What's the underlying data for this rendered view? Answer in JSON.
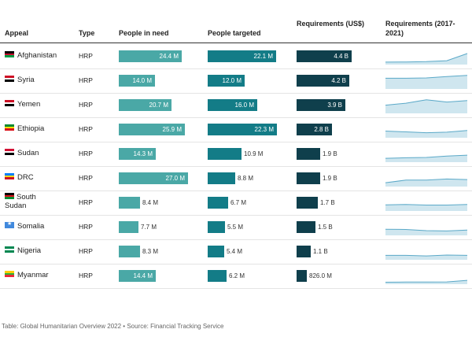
{
  "headers": {
    "appeal": "Appeal",
    "type": "Type",
    "in_need": "People in need",
    "targeted": "People targeted",
    "requirements": "Requirements (US$)",
    "trend": "Requirements (2017-2021)"
  },
  "source": "Table: Global Humanitarian Overview 2022 • Source: Financial Tracking Service",
  "colors": {
    "in_need": "#4aa8a6",
    "targeted": "#137c87",
    "requirements": "#0f3f4c",
    "spark_fill": "#cfe6ef",
    "spark_line": "#5ba9c8"
  },
  "chart_data": {
    "type": "table",
    "scales": {
      "in_need_max": 27.0,
      "targeted_max": 22.3,
      "requirements_max": 4.4
    },
    "rows": [
      {
        "name": "Afghanistan",
        "flag": "afghanistan-flag",
        "type": "HRP",
        "in_need": 24.4,
        "in_need_label": "24.4 M",
        "targeted": 22.1,
        "targeted_label": "22.1 M",
        "requirements": 4.4,
        "requirements_label": "4.4 B",
        "trend": [
          0.3,
          0.35,
          0.5,
          0.8,
          3.3
        ]
      },
      {
        "name": "Syria",
        "flag": "syria-flag",
        "type": "HRP",
        "in_need": 14.0,
        "in_need_label": "14.0 M",
        "targeted": 12.0,
        "targeted_label": "12.0 M",
        "requirements": 4.2,
        "requirements_label": "4.2 B",
        "trend": [
          3.2,
          3.2,
          3.3,
          3.8,
          4.2
        ]
      },
      {
        "name": "Yemen",
        "flag": "yemen-flag",
        "type": "HRP",
        "in_need": 20.7,
        "in_need_label": "20.7 M",
        "targeted": 16.0,
        "targeted_label": "16.0 M",
        "requirements": 3.9,
        "requirements_label": "3.9 B",
        "trend": [
          2.3,
          3.0,
          4.2,
          3.4,
          3.9
        ]
      },
      {
        "name": "Ethiopia",
        "flag": "ethiopia-flag",
        "type": "HRP",
        "in_need": 25.9,
        "in_need_label": "25.9 M",
        "targeted": 22.3,
        "targeted_label": "22.3 M",
        "requirements": 2.8,
        "requirements_label": "2.8 B",
        "trend": [
          1.8,
          1.5,
          1.2,
          1.4,
          2.0
        ]
      },
      {
        "name": "Sudan",
        "flag": "sudan-flag",
        "type": "HRP",
        "in_need": 14.3,
        "in_need_label": "14.3 M",
        "targeted": 10.9,
        "targeted_label": "10.9 M",
        "requirements": 1.9,
        "requirements_label": "1.9 B",
        "trend": [
          0.8,
          1.0,
          1.1,
          1.6,
          1.9
        ]
      },
      {
        "name": "DRC",
        "flag": "drc-flag",
        "type": "HRP",
        "in_need": 27.0,
        "in_need_label": "27.0 M",
        "targeted": 8.8,
        "targeted_label": "8.8 M",
        "requirements": 1.9,
        "requirements_label": "1.9 B",
        "trend": [
          0.8,
          1.7,
          1.7,
          2.1,
          1.9
        ]
      },
      {
        "name": "South Sudan",
        "flag": "south-sudan-flag",
        "type": "HRP",
        "in_need": 8.4,
        "in_need_label": "8.4 M",
        "targeted": 6.7,
        "targeted_label": "6.7 M",
        "requirements": 1.7,
        "requirements_label": "1.7 B",
        "trend": [
          1.6,
          1.7,
          1.5,
          1.5,
          1.7
        ]
      },
      {
        "name": "Somalia",
        "flag": "somalia-flag",
        "type": "HRP",
        "in_need": 7.7,
        "in_need_label": "7.7 M",
        "targeted": 5.5,
        "targeted_label": "5.5 M",
        "requirements": 1.5,
        "requirements_label": "1.5 B",
        "trend": [
          1.6,
          1.5,
          1.1,
          1.0,
          1.3
        ]
      },
      {
        "name": "Nigeria",
        "flag": "nigeria-flag",
        "type": "HRP",
        "in_need": 8.3,
        "in_need_label": "8.3 M",
        "targeted": 5.4,
        "targeted_label": "5.4 M",
        "requirements": 1.1,
        "requirements_label": "1.1 B",
        "trend": [
          1.0,
          1.0,
          0.8,
          1.1,
          1.0
        ]
      },
      {
        "name": "Myanmar",
        "flag": "myanmar-flag",
        "type": "HRP",
        "in_need": 14.4,
        "in_need_label": "14.4 M",
        "targeted": 6.2,
        "targeted_label": "6.2 M",
        "requirements": 0.826,
        "requirements_label": "826.0 M",
        "trend": [
          0.15,
          0.18,
          0.2,
          0.25,
          0.8
        ]
      }
    ]
  }
}
